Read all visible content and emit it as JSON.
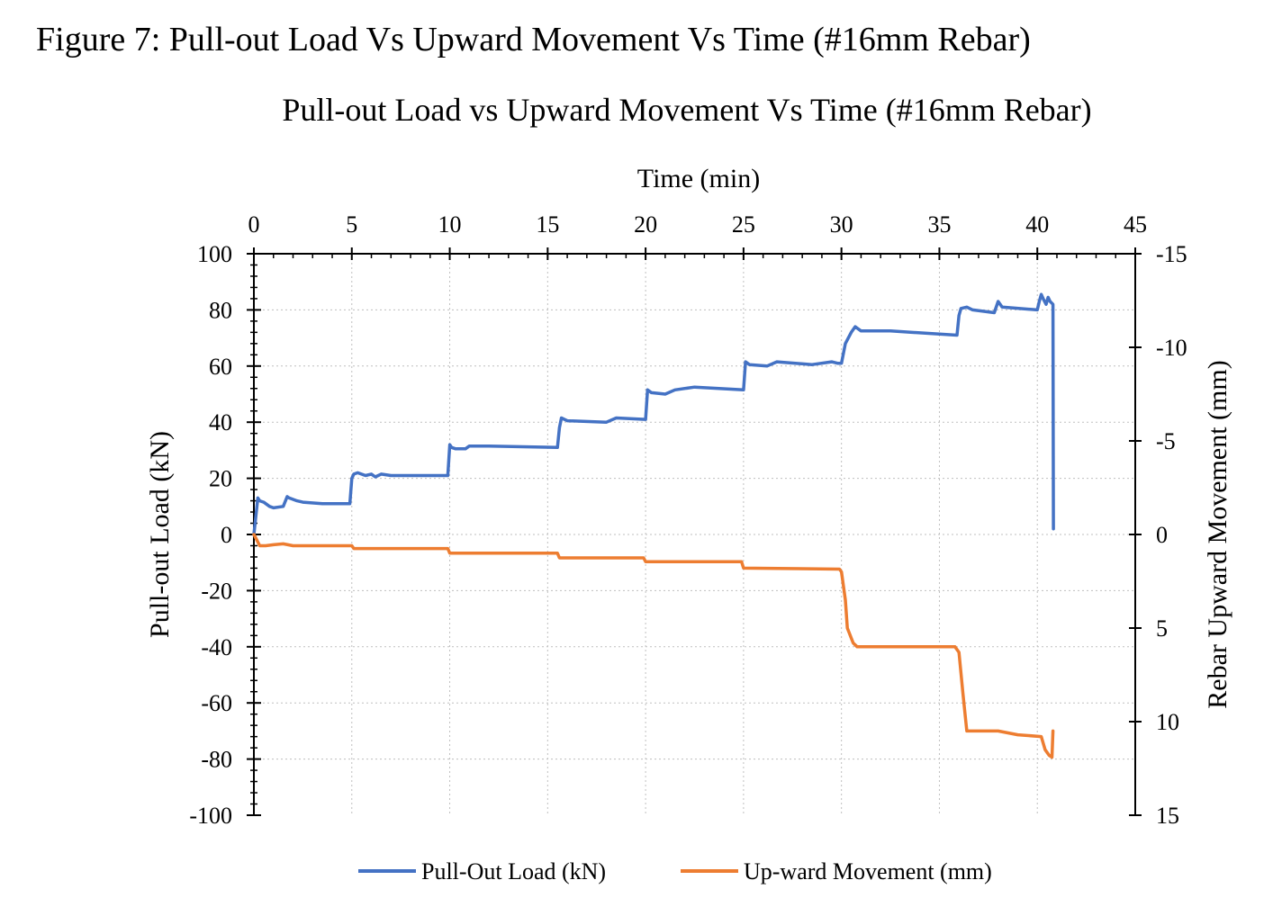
{
  "figure_caption": "Figure 7: Pull-out Load Vs Upward Movement Vs Time (#16mm Rebar)",
  "chart_data": {
    "type": "line",
    "title": "Pull-out Load vs Upward Movement Vs Time (#16mm Rebar)",
    "xlabel": "Time (min)",
    "ylabel": "Pull-out Load (kN)",
    "y2label": "Rebar Upward Movement (mm)",
    "xlim": [
      0,
      45
    ],
    "ylim": [
      -100,
      100
    ],
    "y2lim": [
      15,
      -15
    ],
    "y2_reversed": true,
    "x_ticks": [
      "0",
      "5",
      "10",
      "15",
      "20",
      "25",
      "30",
      "35",
      "40",
      "45"
    ],
    "y_ticks": [
      "100",
      "80",
      "60",
      "40",
      "20",
      "0",
      "-20",
      "-40",
      "-60",
      "-80",
      "-100"
    ],
    "y2_ticks": [
      "-15",
      "-10",
      "-5",
      "0",
      "5",
      "10",
      "15"
    ],
    "grid": true,
    "legend_position": "bottom",
    "colors": {
      "load": "#4472c4",
      "movement": "#ed7d31"
    },
    "series": [
      {
        "name": "Pull-Out Load (kN)",
        "axis": "left",
        "x": [
          0,
          0.2,
          0.3,
          0.5,
          0.8,
          1.0,
          1.5,
          1.7,
          1.8,
          2.2,
          2.5,
          3.5,
          4.9,
          5.0,
          5.1,
          5.3,
          5.7,
          6.0,
          6.2,
          6.5,
          7.0,
          7.5,
          9.9,
          10.0,
          10.1,
          10.3,
          10.8,
          11.0,
          12.0,
          15.5,
          15.6,
          15.7,
          16.0,
          18.0,
          18.5,
          20.0,
          20.1,
          20.3,
          21.0,
          21.5,
          22.5,
          25.0,
          25.1,
          25.3,
          26.2,
          26.7,
          28.5,
          29.5,
          29.8,
          30.0,
          30.2,
          30.5,
          30.7,
          31.0,
          32.5,
          35.9,
          36.0,
          36.1,
          36.4,
          36.7,
          37.8,
          38.0,
          38.2,
          40.0,
          40.1,
          40.2,
          40.3,
          40.45,
          40.55,
          40.65,
          40.8,
          40.82
        ],
        "y": [
          0,
          13,
          12,
          11.5,
          10,
          9.5,
          10,
          13.5,
          13,
          12,
          11.5,
          11,
          11,
          20,
          21.5,
          22,
          21,
          21.5,
          20.5,
          21.5,
          21,
          21,
          21,
          32,
          31,
          30.5,
          30.5,
          31.5,
          31.5,
          31,
          38,
          41.5,
          40.5,
          40,
          41.5,
          41,
          51.5,
          50.5,
          50,
          51.5,
          52.5,
          51.5,
          61.5,
          60.5,
          60,
          61.5,
          60.5,
          61.5,
          61,
          61,
          68,
          72,
          74,
          72.5,
          72.5,
          71,
          78,
          80.5,
          81,
          80,
          79,
          83,
          81,
          80,
          83,
          85.5,
          84,
          82,
          84.5,
          83,
          82,
          2
        ]
      },
      {
        "name": "Up-ward Movement (mm)",
        "axis": "right",
        "x": [
          0,
          0.15,
          0.3,
          0.6,
          1.0,
          1.5,
          2.0,
          3.0,
          5.0,
          5.1,
          9.9,
          10.0,
          15.5,
          15.6,
          19.9,
          20.0,
          24.9,
          25.0,
          29.9,
          30.0,
          30.2,
          30.3,
          30.6,
          30.8,
          35.8,
          36.0,
          36.2,
          36.4,
          38.0,
          39.0,
          40.2,
          40.4,
          40.6,
          40.75,
          40.8
        ],
        "y": [
          0,
          0.3,
          0.6,
          0.6,
          0.55,
          0.5,
          0.6,
          0.6,
          0.6,
          0.75,
          0.75,
          1.0,
          1.0,
          1.25,
          1.25,
          1.45,
          1.45,
          1.8,
          1.85,
          2.0,
          3.5,
          5.0,
          5.8,
          6.0,
          6.0,
          6.3,
          8.5,
          10.5,
          10.5,
          10.7,
          10.8,
          11.5,
          11.8,
          11.9,
          10.5
        ]
      }
    ]
  }
}
